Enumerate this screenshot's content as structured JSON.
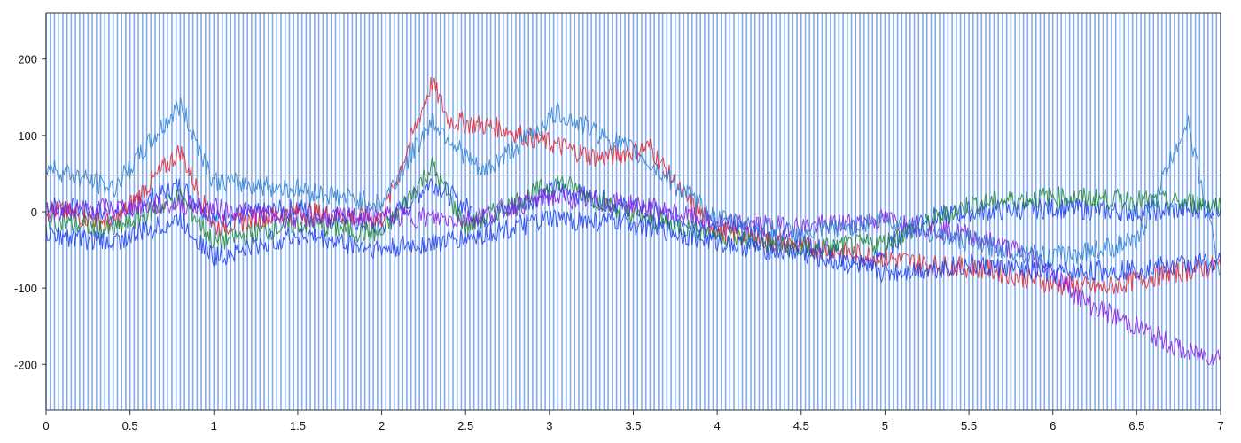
{
  "chart_data": {
    "type": "line",
    "title": "",
    "xlabel": "",
    "ylabel": "",
    "xlim": [
      0,
      7
    ],
    "ylim": [
      -260,
      260
    ],
    "grid": false,
    "x_ticks": [
      0,
      0.5,
      1,
      1.5,
      2,
      2.5,
      3,
      3.5,
      4,
      4.5,
      5,
      5.5,
      6,
      6.5,
      7
    ],
    "x_tick_labels": [
      "0",
      "0.5",
      "1",
      "1.5",
      "2",
      "2.5",
      "3",
      "3.5",
      "4",
      "4.5",
      "5",
      "5.5",
      "6",
      "6.5",
      "7"
    ],
    "y_ticks": [
      200,
      100,
      0,
      -100,
      -200
    ],
    "y_tick_labels": [
      "200",
      "100",
      "0",
      "-100",
      "-200"
    ],
    "reference_line_y": 48,
    "event_markers": {
      "color": "#6f9fe6",
      "interval": 0.025,
      "start": 0.0,
      "end": 7.0
    },
    "series_colors": [
      "#e8202a",
      "#1b3cf0",
      "#1a8a2a",
      "#8a1ae0",
      "#2a7fd0"
    ],
    "series": [
      {
        "color": "#1b3cf0",
        "points": [
          [
            0,
            10
          ],
          [
            0.4,
            -5
          ],
          [
            0.8,
            35
          ],
          [
            1,
            -10
          ],
          [
            1.5,
            5
          ],
          [
            2,
            -20
          ],
          [
            2.3,
            40
          ],
          [
            2.6,
            -10
          ],
          [
            3.05,
            30
          ],
          [
            3.5,
            5
          ],
          [
            4,
            -20
          ],
          [
            4.5,
            -40
          ],
          [
            4.9,
            -70
          ],
          [
            5.2,
            -10
          ],
          [
            5.5,
            0
          ],
          [
            6,
            5
          ],
          [
            6.5,
            0
          ],
          [
            7,
            5
          ]
        ]
      },
      {
        "color": "#e8202a",
        "points": [
          [
            0,
            5
          ],
          [
            0.4,
            -15
          ],
          [
            0.8,
            80
          ],
          [
            1,
            -20
          ],
          [
            1.5,
            0
          ],
          [
            2,
            -10
          ],
          [
            2.3,
            170
          ],
          [
            2.4,
            120
          ],
          [
            2.7,
            110
          ],
          [
            3,
            90
          ],
          [
            3.3,
            70
          ],
          [
            3.6,
            85
          ],
          [
            3.8,
            20
          ],
          [
            4,
            -25
          ],
          [
            4.5,
            -45
          ],
          [
            5,
            -60
          ],
          [
            5.3,
            -70
          ],
          [
            5.6,
            -75
          ],
          [
            6,
            -95
          ],
          [
            6.3,
            -100
          ],
          [
            6.6,
            -85
          ],
          [
            7,
            -70
          ]
        ]
      },
      {
        "color": "#1a8a2a",
        "points": [
          [
            0,
            -10
          ],
          [
            0.4,
            -25
          ],
          [
            0.8,
            20
          ],
          [
            1,
            -40
          ],
          [
            1.5,
            -15
          ],
          [
            2,
            -30
          ],
          [
            2.3,
            60
          ],
          [
            2.5,
            -20
          ],
          [
            3.05,
            40
          ],
          [
            3.5,
            -5
          ],
          [
            4,
            -30
          ],
          [
            4.5,
            -50
          ],
          [
            5,
            -40
          ],
          [
            5.5,
            10
          ],
          [
            6,
            20
          ],
          [
            6.5,
            15
          ],
          [
            7,
            10
          ]
        ]
      },
      {
        "color": "#8a1ae0",
        "points": [
          [
            0,
            0
          ],
          [
            0.8,
            10
          ],
          [
            1.5,
            -10
          ],
          [
            2,
            -5
          ],
          [
            2.5,
            -10
          ],
          [
            3,
            20
          ],
          [
            3.5,
            10
          ],
          [
            4,
            -15
          ],
          [
            4.5,
            -20
          ],
          [
            5,
            -10
          ],
          [
            5.5,
            -30
          ],
          [
            5.9,
            -60
          ],
          [
            6.2,
            -120
          ],
          [
            6.5,
            -150
          ],
          [
            6.8,
            -185
          ],
          [
            7,
            -190
          ]
        ]
      },
      {
        "color": "#2a7fd0",
        "points": [
          [
            0,
            60
          ],
          [
            0.4,
            30
          ],
          [
            0.8,
            140
          ],
          [
            1,
            40
          ],
          [
            1.5,
            30
          ],
          [
            2,
            10
          ],
          [
            2.3,
            120
          ],
          [
            2.6,
            50
          ],
          [
            3.05,
            130
          ],
          [
            3.5,
            80
          ],
          [
            4,
            -10
          ],
          [
            4.5,
            -30
          ],
          [
            5,
            -10
          ],
          [
            5.5,
            -40
          ],
          [
            6,
            -60
          ],
          [
            6.5,
            -40
          ],
          [
            6.8,
            120
          ],
          [
            7,
            -80
          ]
        ]
      },
      {
        "color": "#1b3cf0",
        "points": [
          [
            0,
            -30
          ],
          [
            0.4,
            -40
          ],
          [
            0.8,
            -10
          ],
          [
            1,
            -60
          ],
          [
            1.5,
            -30
          ],
          [
            2,
            -50
          ],
          [
            2.5,
            -35
          ],
          [
            3,
            -10
          ],
          [
            3.5,
            -15
          ],
          [
            4,
            -40
          ],
          [
            4.5,
            -55
          ],
          [
            5,
            -80
          ],
          [
            5.5,
            -70
          ],
          [
            6,
            -80
          ],
          [
            6.5,
            -75
          ],
          [
            7,
            -65
          ]
        ]
      }
    ]
  }
}
